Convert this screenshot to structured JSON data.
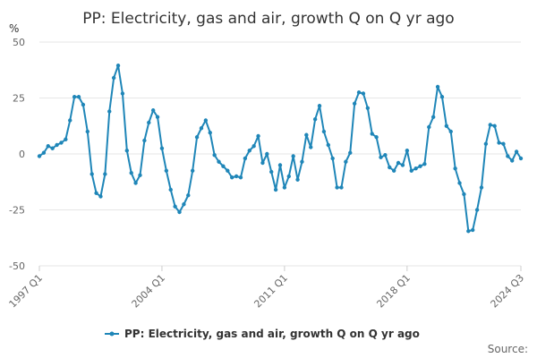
{
  "chart_data": {
    "type": "line",
    "title": "PP: Electricity, gas and air, growth Q on Q yr ago",
    "ylabel": "%",
    "xlabel": "",
    "ylim": [
      -50,
      50
    ],
    "yticks": [
      50,
      25,
      0,
      -25,
      -50
    ],
    "xtick_labels": [
      "1997 Q1",
      "2004 Q1",
      "2011 Q1",
      "2018 Q1",
      "2024 Q3"
    ],
    "grid": true,
    "legend_position": "bottom",
    "source_label": "Source:",
    "color": "#1f86b8",
    "series": [
      {
        "name": "PP: Electricity, gas and air, growth Q on Q yr ago",
        "x": [
          "1997 Q1",
          "1997 Q2",
          "1997 Q3",
          "1997 Q4",
          "1998 Q1",
          "1998 Q2",
          "1998 Q3",
          "1998 Q4",
          "1999 Q1",
          "1999 Q2",
          "1999 Q3",
          "1999 Q4",
          "2000 Q1",
          "2000 Q2",
          "2000 Q3",
          "2000 Q4",
          "2001 Q1",
          "2001 Q2",
          "2001 Q3",
          "2001 Q4",
          "2002 Q1",
          "2002 Q2",
          "2002 Q3",
          "2002 Q4",
          "2003 Q1",
          "2003 Q2",
          "2003 Q3",
          "2003 Q4",
          "2004 Q1",
          "2004 Q2",
          "2004 Q3",
          "2004 Q4",
          "2005 Q1",
          "2005 Q2",
          "2005 Q3",
          "2005 Q4",
          "2006 Q1",
          "2006 Q2",
          "2006 Q3",
          "2006 Q4",
          "2007 Q1",
          "2007 Q2",
          "2007 Q3",
          "2007 Q4",
          "2008 Q1",
          "2008 Q2",
          "2008 Q3",
          "2008 Q4",
          "2009 Q1",
          "2009 Q2",
          "2009 Q3",
          "2009 Q4",
          "2010 Q1",
          "2010 Q2",
          "2010 Q3",
          "2010 Q4",
          "2011 Q1",
          "2011 Q2",
          "2011 Q3",
          "2011 Q4",
          "2012 Q1",
          "2012 Q2",
          "2012 Q3",
          "2012 Q4",
          "2013 Q1",
          "2013 Q2",
          "2013 Q3",
          "2013 Q4",
          "2014 Q1",
          "2014 Q2",
          "2014 Q3",
          "2014 Q4",
          "2015 Q1",
          "2015 Q2",
          "2015 Q3",
          "2015 Q4",
          "2016 Q1",
          "2016 Q2",
          "2016 Q3",
          "2016 Q4",
          "2017 Q1",
          "2017 Q2",
          "2017 Q3",
          "2017 Q4",
          "2018 Q1",
          "2018 Q2",
          "2018 Q3",
          "2018 Q4",
          "2019 Q1",
          "2019 Q2",
          "2019 Q3",
          "2019 Q4",
          "2020 Q1",
          "2020 Q2",
          "2020 Q3",
          "2020 Q4",
          "2021 Q1",
          "2021 Q2",
          "2021 Q3",
          "2021 Q4",
          "2022 Q1",
          "2022 Q2",
          "2022 Q3",
          "2022 Q4",
          "2023 Q1",
          "2023 Q2",
          "2023 Q3",
          "2023 Q4",
          "2024 Q1",
          "2024 Q2",
          "2024 Q3"
        ],
        "values": [
          -1,
          0.5,
          3.5,
          2.5,
          4,
          5,
          6.5,
          15,
          25.5,
          25.5,
          22,
          10,
          -9,
          -17.5,
          -19,
          -9,
          19,
          34,
          39.5,
          27,
          1.5,
          -8.5,
          -13,
          -9.5,
          6,
          14,
          19.5,
          16.5,
          2.5,
          -7.5,
          -16,
          -23.5,
          -26,
          -22.5,
          -18.5,
          -7.5,
          7.5,
          11.5,
          15,
          9.5,
          -0.5,
          -3.5,
          -5.5,
          -7.5,
          -10.5,
          -10,
          -10.5,
          -2,
          1.5,
          3.5,
          8,
          -4,
          0,
          -8,
          -16,
          -5,
          -15,
          -10,
          -1,
          -11.5,
          -3.5,
          8.5,
          3,
          15.5,
          21.5,
          10,
          4,
          -2,
          -15,
          -15,
          -3.5,
          0.5,
          22.5,
          27.5,
          27,
          20.5,
          9,
          7.5,
          -1.5,
          -0.5,
          -6,
          -7.5,
          -4,
          -5,
          1.5,
          -7.5,
          -6.5,
          -5.5,
          -4.5,
          12,
          16.5,
          30,
          25.5,
          12.5,
          10,
          -6.5,
          -13,
          -18,
          -34.5,
          -34,
          -25,
          -15,
          4.5,
          13,
          12.5,
          5,
          4.5,
          -1,
          -3,
          1,
          -2
        ]
      }
    ]
  }
}
